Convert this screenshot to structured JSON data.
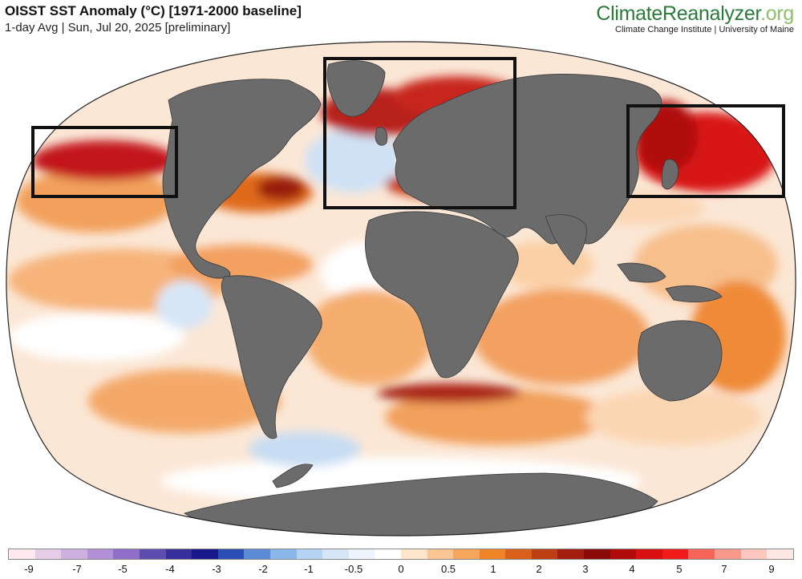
{
  "header": {
    "title": "OISST SST Anomaly (°C) [1971-2000 baseline]",
    "subtitle": "1-day Avg | Sun, Jul 20, 2025 [preliminary]"
  },
  "brand": {
    "name_main": "ClimateReanalyzer",
    "name_tld": ".org",
    "affiliation": "Climate Change Institute | University of Maine"
  },
  "map": {
    "projection": "Robinson-style world map",
    "land_color": "#6b6b6b",
    "highlight_boxes": [
      "North Pacific",
      "North Atlantic / Europe",
      "Northwest Pacific / Japan Sea"
    ]
  },
  "legend": {
    "colors": [
      "#fde9ee",
      "#e5cde8",
      "#cdb0e0",
      "#b28fd6",
      "#8f6fc9",
      "#5d4db0",
      "#362e9c",
      "#18188a",
      "#2b4fb5",
      "#5c8ad5",
      "#8ab7e9",
      "#b5d3f2",
      "#d6e6f7",
      "#eef4fb",
      "#ffffff",
      "#fde5cc",
      "#f9c593",
      "#f5a55c",
      "#ef8527",
      "#d8601a",
      "#bf3f14",
      "#a31d10",
      "#8a0a0a",
      "#b00a0a",
      "#d81010",
      "#f01c1c",
      "#f7645a",
      "#f9998d",
      "#fbc7bf",
      "#fde7e3"
    ],
    "tick_labels": [
      "-9",
      "-7",
      "-5",
      "-4",
      "-3",
      "-2",
      "-1",
      "-0.5",
      "0",
      "0.5",
      "1",
      "2",
      "3",
      "4",
      "5",
      "7",
      "9"
    ]
  }
}
